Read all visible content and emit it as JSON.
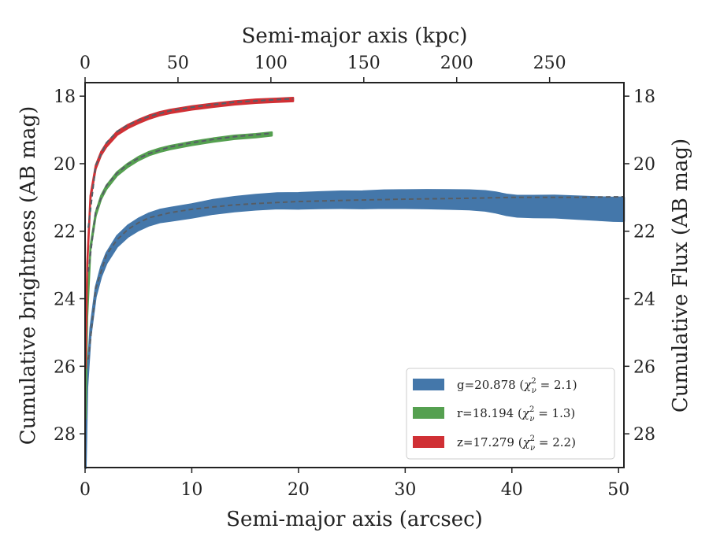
{
  "chart_data": {
    "type": "line",
    "title": "",
    "xlabel": "Semi-major axis (arcsec)",
    "xlabel_top": "Semi-major axis (kpc)",
    "ylabel": "Cumulative brightness (AB mag)",
    "ylabel_right": "Cumulative Flux (AB mag)",
    "xlim": [
      0,
      50.5
    ],
    "xlim_top": [
      0,
      290
    ],
    "ylim": [
      29.0,
      17.6
    ],
    "y_inverted": true,
    "x_ticks": [
      "0",
      "10",
      "20",
      "30",
      "40",
      "50"
    ],
    "x_ticks_top": [
      "0",
      "50",
      "100",
      "150",
      "200",
      "250"
    ],
    "y_ticks": [
      "18",
      "20",
      "22",
      "24",
      "26",
      "28"
    ],
    "grid": false,
    "legend_position": "lower-right",
    "series": [
      {
        "name": "g=20.878 (χ²ν = 2.1)",
        "legend_main": "g=20.878 (",
        "legend_chi": "χ",
        "legend_sup": "2",
        "legend_sub": "ν",
        "legend_val": " = 2.1)",
        "color": "#4477aa",
        "band_width": [
          0.12,
          0.35
        ],
        "x": [
          0.05,
          0.2,
          0.5,
          1,
          1.5,
          2,
          3,
          4,
          5,
          6,
          7,
          8,
          10,
          12,
          14,
          16,
          18,
          20,
          22,
          24,
          26,
          28,
          30,
          32,
          34,
          36,
          37.5,
          38.5,
          39.5,
          40.5,
          42,
          44,
          46,
          48,
          49.5,
          50.5
        ],
        "y": [
          28.9,
          26.5,
          25.0,
          23.8,
          23.2,
          22.8,
          22.3,
          22.0,
          21.8,
          21.65,
          21.55,
          21.5,
          21.4,
          21.28,
          21.2,
          21.14,
          21.1,
          21.1,
          21.08,
          21.07,
          21.07,
          21.05,
          21.05,
          21.05,
          21.06,
          21.07,
          21.1,
          21.15,
          21.22,
          21.26,
          21.27,
          21.27,
          21.3,
          21.33,
          21.35,
          21.35
        ]
      },
      {
        "name": "r=18.194 (χ²ν = 1.3)",
        "legend_main": "r=18.194 (",
        "legend_chi": "χ",
        "legend_sup": "2",
        "legend_sub": "ν",
        "legend_val": " = 1.3)",
        "color": "#55a050",
        "band_width": [
          0.05,
          0.05
        ],
        "x": [
          0.05,
          0.2,
          0.5,
          1,
          1.5,
          2,
          3,
          4,
          5,
          6,
          7,
          8,
          10,
          12,
          14,
          16,
          17.5
        ],
        "y": [
          27.5,
          24.5,
          22.5,
          21.5,
          21.0,
          20.7,
          20.3,
          20.05,
          19.85,
          19.7,
          19.6,
          19.52,
          19.4,
          19.3,
          19.22,
          19.17,
          19.12
        ]
      },
      {
        "name": "z=17.279 (χ²ν = 2.2)",
        "legend_main": "z=17.279 (",
        "legend_chi": "χ",
        "legend_sup": "2",
        "legend_sub": "ν",
        "legend_val": " = 2.2)",
        "color": "#d03035",
        "band_width": [
          0.05,
          0.05
        ],
        "x": [
          0.05,
          0.2,
          0.5,
          1,
          1.5,
          2,
          3,
          4,
          5,
          6,
          7,
          8,
          10,
          12,
          14,
          16,
          18,
          19.5
        ],
        "y": [
          26.0,
          23.0,
          21.0,
          20.1,
          19.7,
          19.45,
          19.1,
          18.9,
          18.75,
          18.62,
          18.52,
          18.45,
          18.35,
          18.27,
          18.2,
          18.15,
          18.12,
          18.1
        ]
      }
    ],
    "fits": [
      {
        "for": "g",
        "color_tail": "#888888",
        "x": [
          0.3,
          1,
          2,
          3,
          4,
          5,
          6,
          8,
          10,
          12,
          14,
          16,
          20,
          25,
          30,
          35,
          40,
          45,
          50.5
        ],
        "y": [
          25.8,
          23.7,
          22.7,
          22.25,
          21.95,
          21.75,
          21.6,
          21.45,
          21.35,
          21.28,
          21.22,
          21.18,
          21.12,
          21.08,
          21.05,
          21.03,
          21.0,
          21.0,
          20.98
        ]
      },
      {
        "for": "r",
        "color_tail": "#888888",
        "x": [
          0.3,
          1,
          2,
          3,
          4,
          5,
          6,
          8,
          10,
          12,
          14,
          16,
          17.5
        ],
        "y": [
          23.2,
          21.4,
          20.65,
          20.28,
          20.02,
          19.84,
          19.7,
          19.5,
          19.38,
          19.28,
          19.2,
          19.14,
          19.1
        ]
      },
      {
        "for": "z",
        "color_tail": "#888888",
        "x": [
          0.3,
          1,
          2,
          3,
          4,
          5,
          6,
          8,
          10,
          12,
          14,
          16,
          18,
          19.5
        ],
        "y": [
          21.9,
          20.05,
          19.38,
          19.05,
          18.86,
          18.72,
          18.6,
          18.43,
          18.33,
          18.25,
          18.18,
          18.14,
          18.1,
          18.08
        ]
      }
    ]
  }
}
